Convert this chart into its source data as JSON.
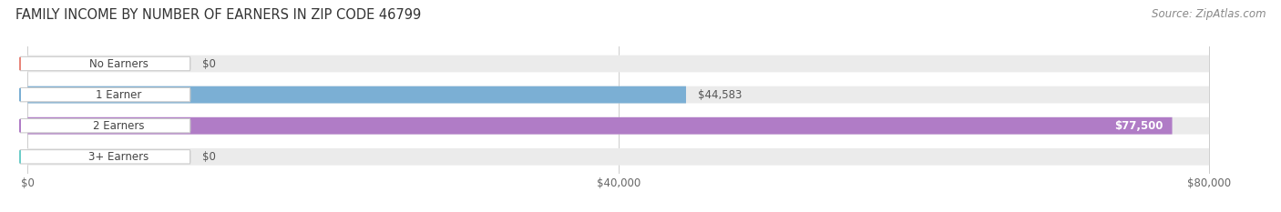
{
  "title": "FAMILY INCOME BY NUMBER OF EARNERS IN ZIP CODE 46799",
  "source": "Source: ZipAtlas.com",
  "categories": [
    "No Earners",
    "1 Earner",
    "2 Earners",
    "3+ Earners"
  ],
  "values": [
    0,
    44583,
    77500,
    0
  ],
  "max_value": 80000,
  "bar_colors": [
    "#e8857a",
    "#7bafd4",
    "#b07cc6",
    "#6dcdc8"
  ],
  "label_values": [
    "$0",
    "$44,583",
    "$77,500",
    "$0"
  ],
  "value_in_bar": [
    false,
    false,
    true,
    false
  ],
  "x_ticks": [
    0,
    40000,
    80000
  ],
  "x_tick_labels": [
    "$0",
    "$40,000",
    "$80,000"
  ],
  "title_fontsize": 10.5,
  "source_fontsize": 8.5,
  "label_fontsize": 8.5,
  "value_fontsize": 8.5,
  "axis_fontsize": 8.5,
  "background_color": "#ffffff",
  "bg_bar_color": "#ebebeb",
  "grid_color": "#cccccc",
  "pill_edge_color": "#cccccc"
}
